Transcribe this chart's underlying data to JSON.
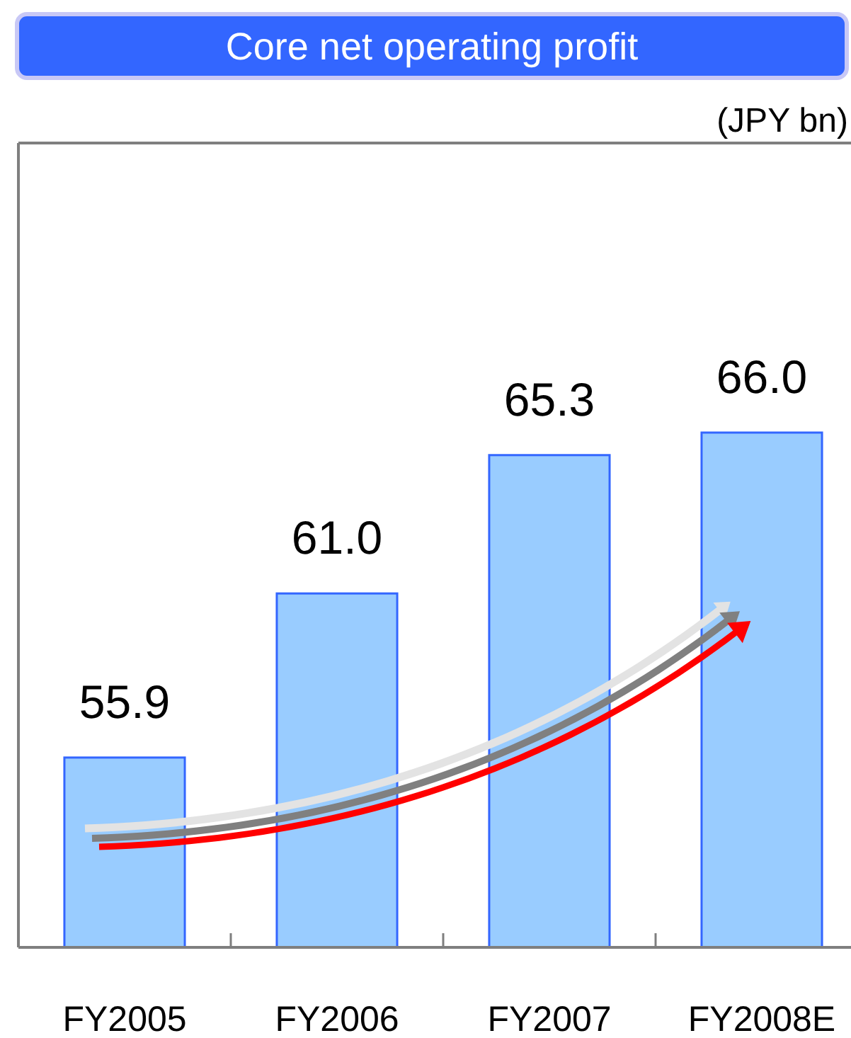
{
  "chart_data": {
    "type": "bar",
    "title": "Core net operating profit",
    "ylabel": "(JPY bn)",
    "categories": [
      "FY2005",
      "FY2006",
      "FY2007",
      "FY2008E"
    ],
    "values": [
      55.9,
      61.0,
      65.3,
      66.0
    ],
    "value_labels": [
      "55.9",
      "61.0",
      "65.3",
      "66.0"
    ],
    "color": "#99ccff",
    "ylim": [
      50,
      75
    ],
    "tick_labels": "x"
  }
}
